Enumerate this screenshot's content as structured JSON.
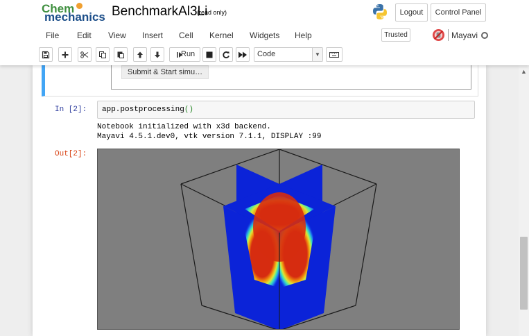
{
  "logo": {
    "line1": "Chem",
    "line2": "mechanics"
  },
  "notebook": {
    "name": "BenchmarkAl3Li",
    "status": "(read only)"
  },
  "header": {
    "logout_label": "Logout",
    "control_panel_label": "Control Panel"
  },
  "menubar": {
    "items": [
      "File",
      "Edit",
      "View",
      "Insert",
      "Cell",
      "Kernel",
      "Widgets",
      "Help"
    ],
    "trusted_label": "Trusted",
    "kernel_name": "Mayavi"
  },
  "toolbar": {
    "run_label": "Run",
    "cell_type": "Code"
  },
  "widget": {
    "submit_label": "Submit & Start simu…"
  },
  "cells": {
    "in_prompt": "In [2]:",
    "code_text": "app.postprocessing",
    "code_parens": "()",
    "stdout_lines": [
      "Notebook initialized with x3d backend.",
      "Mayavi 4.5.1.dev0, vtk version 7.1.1, DISPLAY :99"
    ],
    "out_prompt": "Out[2]:"
  },
  "colors": {
    "accent_selected": "#42a5f5",
    "prompt_in": "#303f9f",
    "prompt_out": "#d84315",
    "plane_blue": "#0b23d8",
    "hot_red": "#d62c10",
    "viewport_gray": "#7f7f7f"
  }
}
